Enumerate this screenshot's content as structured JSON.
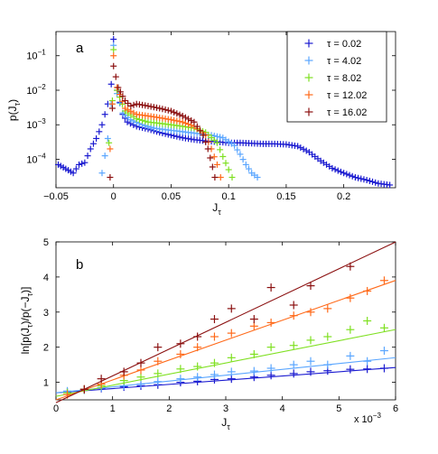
{
  "chart_data": [
    {
      "panel_label": "a",
      "type": "scatter",
      "yscale": "log",
      "xlabel": "J",
      "xlabel_sub": "τ",
      "ylabel": "p(J",
      "ylabel_sub": "τ",
      "ylabel_close": ")",
      "xlim": [
        -0.05,
        0.245
      ],
      "ylim": [
        1.5e-05,
        0.5
      ],
      "xticks": [
        -0.05,
        0,
        0.05,
        0.1,
        0.15,
        0.2
      ],
      "xtick_labels": [
        "−0.05",
        "0",
        "0.05",
        "0.1",
        "0.15",
        "0.2"
      ],
      "yticks": [
        0.0001,
        0.001,
        0.01,
        0.1
      ],
      "ytick_base": [
        "10",
        "10",
        "10",
        "10"
      ],
      "ytick_exp": [
        "−4",
        "−3",
        "−2",
        "−1"
      ],
      "legend": "top-right",
      "series": [
        {
          "name": "τ = 0.02",
          "color": "#1a1ad0",
          "points": [
            [
              -0.048,
              7e-05
            ],
            [
              -0.035,
              4e-05
            ],
            [
              -0.03,
              7e-05
            ],
            [
              -0.025,
              8e-05
            ],
            [
              -0.02,
              0.0002
            ],
            [
              -0.015,
              0.0004
            ],
            [
              -0.01,
              0.001
            ],
            [
              -0.005,
              0.004
            ],
            [
              -0.002,
              0.015
            ],
            [
              0,
              0.3
            ],
            [
              0.003,
              0.01
            ],
            [
              0.008,
              0.002
            ],
            [
              0.012,
              0.0012
            ],
            [
              0.02,
              0.0009
            ],
            [
              0.03,
              0.00075
            ],
            [
              0.04,
              0.0006
            ],
            [
              0.05,
              0.0005
            ],
            [
              0.06,
              0.00042
            ],
            [
              0.07,
              0.00037
            ],
            [
              0.08,
              0.00034
            ],
            [
              0.09,
              0.00032
            ],
            [
              0.1,
              0.0003
            ],
            [
              0.11,
              0.0003
            ],
            [
              0.12,
              0.00029
            ],
            [
              0.13,
              0.00028
            ],
            [
              0.14,
              0.00028
            ],
            [
              0.15,
              0.00027
            ],
            [
              0.16,
              0.00024
            ],
            [
              0.17,
              0.00016
            ],
            [
              0.18,
              9e-05
            ],
            [
              0.19,
              5.5e-05
            ],
            [
              0.2,
              4e-05
            ],
            [
              0.21,
              3e-05
            ],
            [
              0.22,
              2.5e-05
            ],
            [
              0.23,
              2e-05
            ],
            [
              0.24,
              1.8e-05
            ]
          ]
        },
        {
          "name": "τ = 4.02",
          "color": "#5aa6ff",
          "points": [
            [
              -0.01,
              4e-05
            ],
            [
              -0.005,
              0.0004
            ],
            [
              -0.002,
              0.004
            ],
            [
              0,
              0.2
            ],
            [
              0.003,
              0.008
            ],
            [
              0.008,
              0.0022
            ],
            [
              0.015,
              0.0014
            ],
            [
              0.025,
              0.001
            ],
            [
              0.035,
              0.0008
            ],
            [
              0.045,
              0.00072
            ],
            [
              0.055,
              0.00066
            ],
            [
              0.065,
              0.0006
            ],
            [
              0.075,
              0.00055
            ],
            [
              0.085,
              0.0005
            ],
            [
              0.095,
              0.00042
            ],
            [
              0.105,
              0.00025
            ],
            [
              0.11,
              0.00014
            ],
            [
              0.115,
              7e-05
            ],
            [
              0.12,
              4e-05
            ],
            [
              0.125,
              3e-05
            ]
          ]
        },
        {
          "name": "τ = 8.02",
          "color": "#7fe021",
          "points": [
            [
              -0.004,
              0.0003
            ],
            [
              -0.001,
              0.005
            ],
            [
              0,
              0.15
            ],
            [
              0.003,
              0.01
            ],
            [
              0.01,
              0.0025
            ],
            [
              0.02,
              0.0015
            ],
            [
              0.03,
              0.0012
            ],
            [
              0.04,
              0.0011
            ],
            [
              0.05,
              0.001
            ],
            [
              0.06,
              0.0009
            ],
            [
              0.07,
              0.0008
            ],
            [
              0.08,
              0.0006
            ],
            [
              0.09,
              0.0003
            ],
            [
              0.095,
              0.00012
            ],
            [
              0.1,
              5e-05
            ],
            [
              0.103,
              3e-05
            ]
          ]
        },
        {
          "name": "τ = 12.02",
          "color": "#ff6a1a",
          "points": [
            [
              -0.003,
              0.0002
            ],
            [
              -0.001,
              0.004
            ],
            [
              0,
              0.1
            ],
            [
              0.003,
              0.012
            ],
            [
              0.01,
              0.003
            ],
            [
              0.02,
              0.002
            ],
            [
              0.03,
              0.0018
            ],
            [
              0.04,
              0.0016
            ],
            [
              0.05,
              0.0014
            ],
            [
              0.06,
              0.0012
            ],
            [
              0.07,
              0.0009
            ],
            [
              0.08,
              0.0005
            ],
            [
              0.085,
              0.0002
            ],
            [
              0.09,
              7e-05
            ],
            [
              0.093,
              3e-05
            ]
          ]
        },
        {
          "name": "τ = 16.02",
          "color": "#8b1010",
          "points": [
            [
              -0.003,
              3e-05
            ],
            [
              -0.001,
              0.003
            ],
            [
              0,
              0.05
            ],
            [
              0.004,
              0.012
            ],
            [
              0.01,
              0.005
            ],
            [
              0.015,
              0.0035
            ],
            [
              0.02,
              0.004
            ],
            [
              0.03,
              0.0035
            ],
            [
              0.04,
              0.003
            ],
            [
              0.05,
              0.0025
            ],
            [
              0.06,
              0.0018
            ],
            [
              0.07,
              0.0012
            ],
            [
              0.078,
              0.0005
            ],
            [
              0.082,
              0.0002
            ],
            [
              0.086,
              6e-05
            ],
            [
              0.088,
              3e-05
            ]
          ]
        }
      ]
    },
    {
      "panel_label": "b",
      "type": "scatter",
      "xlabel": "J",
      "xlabel_sub": "τ",
      "ylabel": "ln[p(J",
      "ylabel_sub1": "τ",
      "ylabel_mid": ")/p(−J",
      "ylabel_sub2": "τ",
      "ylabel_close": ")]",
      "x_multiplier": "x 10",
      "x_multiplier_exp": "−3",
      "xlim": [
        0,
        6
      ],
      "ylim": [
        0.5,
        5
      ],
      "xticks": [
        0,
        1,
        2,
        3,
        4,
        5,
        6
      ],
      "xtick_labels": [
        "0",
        "1",
        "2",
        "3",
        "4",
        "5",
        "6"
      ],
      "yticks": [
        1,
        2,
        3,
        4,
        5
      ],
      "ytick_labels": [
        "1",
        "2",
        "3",
        "4",
        "5"
      ],
      "series": [
        {
          "name": "τ = 0.02",
          "color": "#1a1ad0",
          "fit": [
            0.7,
            0.12
          ],
          "points": [
            [
              0.2,
              0.72
            ],
            [
              0.5,
              0.8
            ],
            [
              0.8,
              0.83
            ],
            [
              1.2,
              0.87
            ],
            [
              1.5,
              0.9
            ],
            [
              1.8,
              0.93
            ],
            [
              2.2,
              1.0
            ],
            [
              2.5,
              1.03
            ],
            [
              2.8,
              1.08
            ],
            [
              3.1,
              1.1
            ],
            [
              3.5,
              1.15
            ],
            [
              3.8,
              1.2
            ],
            [
              4.2,
              1.25
            ],
            [
              4.5,
              1.3
            ],
            [
              4.8,
              1.33
            ],
            [
              5.2,
              1.37
            ],
            [
              5.5,
              1.38
            ],
            [
              5.8,
              1.4
            ]
          ]
        },
        {
          "name": "τ = 4.02",
          "color": "#5aa6ff",
          "fit": [
            0.7,
            0.167
          ],
          "points": [
            [
              0.2,
              0.75
            ],
            [
              0.5,
              0.78
            ],
            [
              0.8,
              0.85
            ],
            [
              1.2,
              0.9
            ],
            [
              1.5,
              0.95
            ],
            [
              1.8,
              1.02
            ],
            [
              2.2,
              1.1
            ],
            [
              2.5,
              1.15
            ],
            [
              2.8,
              1.22
            ],
            [
              3.1,
              1.3
            ],
            [
              3.5,
              1.32
            ],
            [
              3.8,
              1.4
            ],
            [
              4.2,
              1.5
            ],
            [
              4.5,
              1.6
            ],
            [
              4.8,
              1.5
            ],
            [
              5.2,
              1.75
            ],
            [
              5.5,
              1.6
            ],
            [
              5.8,
              1.9
            ]
          ]
        },
        {
          "name": "τ = 8.02",
          "color": "#7fe021",
          "fit": [
            0.6,
            0.317
          ],
          "points": [
            [
              0.2,
              0.7
            ],
            [
              0.5,
              0.8
            ],
            [
              0.8,
              0.9
            ],
            [
              1.2,
              1.05
            ],
            [
              1.5,
              1.15
            ],
            [
              1.8,
              1.25
            ],
            [
              2.2,
              1.38
            ],
            [
              2.5,
              1.45
            ],
            [
              2.8,
              1.55
            ],
            [
              3.1,
              1.7
            ],
            [
              3.5,
              1.8
            ],
            [
              3.8,
              2.0
            ],
            [
              4.2,
              2.05
            ],
            [
              4.5,
              2.2
            ],
            [
              4.8,
              2.3
            ],
            [
              5.2,
              2.5
            ],
            [
              5.5,
              2.75
            ],
            [
              5.8,
              2.55
            ]
          ]
        },
        {
          "name": "τ = 12.02",
          "color": "#ff6a1a",
          "fit": [
            0.5,
            0.567
          ],
          "points": [
            [
              0.2,
              0.65
            ],
            [
              0.5,
              0.8
            ],
            [
              0.8,
              0.95
            ],
            [
              1.2,
              1.2
            ],
            [
              1.5,
              1.35
            ],
            [
              1.8,
              1.6
            ],
            [
              2.2,
              1.8
            ],
            [
              2.5,
              2.0
            ],
            [
              2.8,
              2.3
            ],
            [
              3.1,
              2.4
            ],
            [
              3.5,
              2.6
            ],
            [
              3.8,
              2.7
            ],
            [
              4.2,
              2.9
            ],
            [
              4.5,
              3.0
            ],
            [
              4.8,
              3.1
            ],
            [
              5.2,
              3.4
            ],
            [
              5.5,
              3.6
            ],
            [
              5.8,
              3.9
            ]
          ]
        },
        {
          "name": "τ = 16.02",
          "color": "#8b1010",
          "fit": [
            0.42,
            0.763
          ],
          "points": [
            [
              0.5,
              0.8
            ],
            [
              0.8,
              1.1
            ],
            [
              1.2,
              1.3
            ],
            [
              1.5,
              1.55
            ],
            [
              1.8,
              2.0
            ],
            [
              2.2,
              2.1
            ],
            [
              2.5,
              2.3
            ],
            [
              2.8,
              2.8
            ],
            [
              3.1,
              3.1
            ],
            [
              3.5,
              2.8
            ],
            [
              3.8,
              3.7
            ],
            [
              4.2,
              3.2
            ],
            [
              4.5,
              3.75
            ],
            [
              5.2,
              4.3
            ]
          ]
        }
      ]
    }
  ]
}
